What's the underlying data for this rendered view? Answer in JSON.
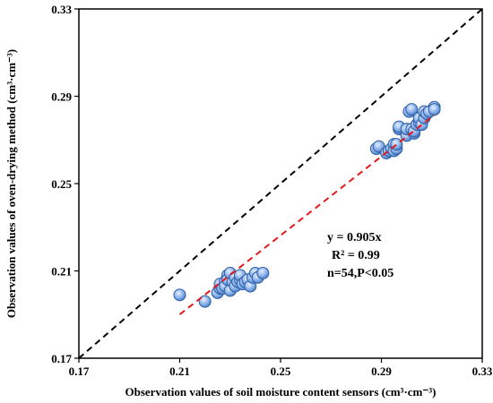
{
  "chart_data": {
    "type": "scatter",
    "xlabel": "Observation values of soil moisture content sensors (cm³·cm⁻³)",
    "ylabel": "Observation values of oven-drying method (cm³·cm⁻³)",
    "xlim": [
      0.17,
      0.33
    ],
    "ylim": [
      0.17,
      0.33
    ],
    "xticks": [
      "0.17",
      "0.21",
      "0.25",
      "0.29",
      "0.33"
    ],
    "yticks": [
      "0.17",
      "0.21",
      "0.25",
      "0.29",
      "0.33"
    ],
    "grid": false,
    "points": {
      "x": [
        0.21,
        0.22,
        0.225,
        0.226,
        0.226,
        0.227,
        0.228,
        0.228,
        0.229,
        0.229,
        0.23,
        0.23,
        0.231,
        0.232,
        0.232,
        0.233,
        0.234,
        0.234,
        0.235,
        0.236,
        0.237,
        0.238,
        0.239,
        0.24,
        0.241,
        0.243,
        0.288,
        0.289,
        0.292,
        0.293,
        0.294,
        0.295,
        0.295,
        0.296,
        0.296,
        0.297,
        0.297,
        0.3,
        0.3,
        0.301,
        0.302,
        0.302,
        0.303,
        0.303,
        0.304,
        0.305,
        0.305,
        0.306,
        0.307,
        0.307,
        0.308,
        0.309,
        0.311,
        0.311
      ],
      "y": [
        0.199,
        0.196,
        0.2,
        0.202,
        0.204,
        0.202,
        0.205,
        0.203,
        0.208,
        0.206,
        0.209,
        0.201,
        0.205,
        0.203,
        0.207,
        0.205,
        0.206,
        0.208,
        0.204,
        0.205,
        0.206,
        0.203,
        0.207,
        0.209,
        0.207,
        0.209,
        0.266,
        0.267,
        0.264,
        0.265,
        0.266,
        0.268,
        0.265,
        0.266,
        0.268,
        0.275,
        0.276,
        0.272,
        0.275,
        0.283,
        0.284,
        0.275,
        0.273,
        0.274,
        0.277,
        0.278,
        0.28,
        0.277,
        0.28,
        0.283,
        0.282,
        0.283,
        0.285,
        0.284
      ]
    },
    "reference_line": {
      "style": "dashed",
      "color": "#000000",
      "slope": 1.0
    },
    "fit_line": {
      "style": "dashed",
      "color": "#e31a1c",
      "slope": 0.905,
      "x_range": [
        0.21,
        0.311
      ]
    },
    "annotations": [
      "y = 0.905x",
      "R² = 0.99",
      "n=54,P<0.05"
    ],
    "marker_fill": "#7fa8e0",
    "marker_stroke": "#2f5fa8"
  }
}
